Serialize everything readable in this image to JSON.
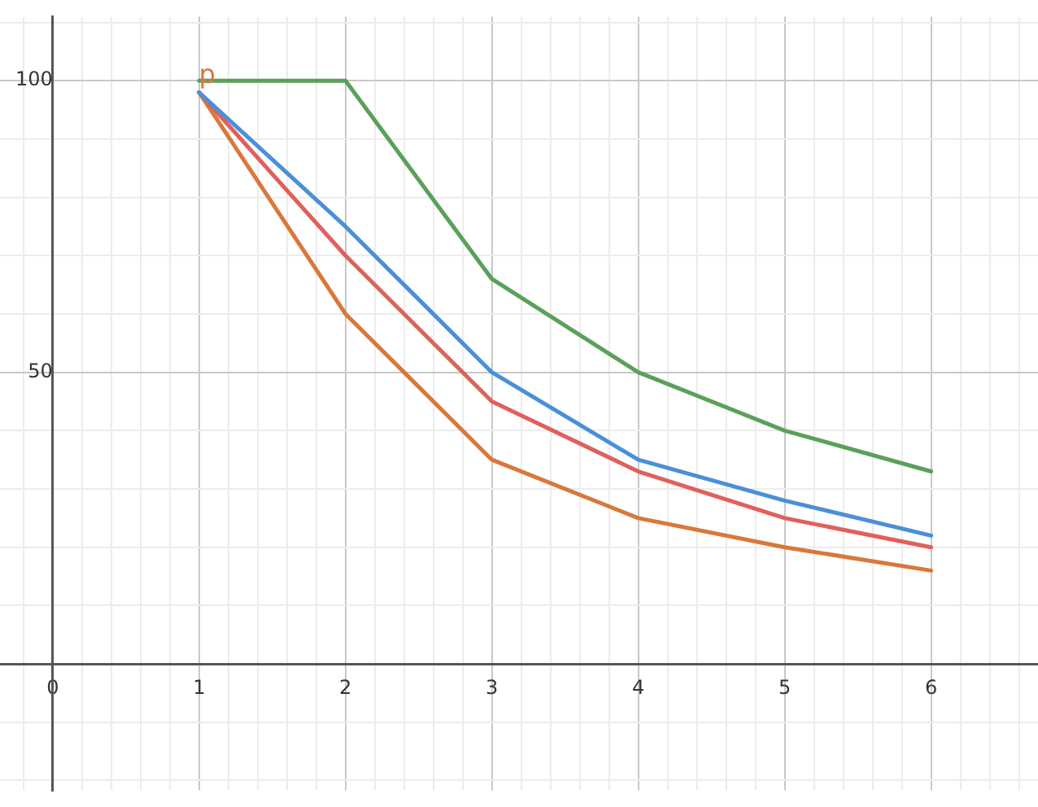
{
  "chart_data": {
    "type": "line",
    "x": [
      1,
      2,
      3,
      4,
      5,
      6
    ],
    "series": [
      {
        "color": "#5ba05a",
        "values": [
          100,
          100,
          66,
          50,
          40,
          33
        ]
      },
      {
        "color": "#4a8fd8",
        "values": [
          98,
          75,
          50,
          35,
          28,
          22
        ]
      },
      {
        "color": "#e0605c",
        "values": [
          98,
          70,
          45,
          33,
          25,
          20
        ]
      },
      {
        "color": "#d9783a",
        "values": [
          98,
          60,
          35,
          25,
          20,
          16
        ]
      }
    ],
    "xlim": [
      -0.36,
      6.73
    ],
    "ylim": [
      -21.7,
      111
    ],
    "xticks": [
      {
        "value": -0.2,
        "label": null
      },
      0,
      {
        "value": 0.2,
        "label": null
      },
      {
        "value": 0.4,
        "label": null
      },
      {
        "value": 0.6,
        "label": null
      },
      {
        "value": 0.8,
        "label": null
      },
      1,
      {
        "value": 1.2,
        "label": null
      },
      {
        "value": 1.4,
        "label": null
      },
      {
        "value": 1.6,
        "label": null
      },
      {
        "value": 1.8,
        "label": null
      },
      2,
      {
        "value": 2.2,
        "label": null
      },
      {
        "value": 2.4,
        "label": null
      },
      {
        "value": 2.6,
        "label": null
      },
      {
        "value": 2.8,
        "label": null
      },
      3,
      {
        "value": 3.2,
        "label": null
      },
      {
        "value": 3.4,
        "label": null
      },
      {
        "value": 3.6,
        "label": null
      },
      {
        "value": 3.8,
        "label": null
      },
      4,
      {
        "value": 4.2,
        "label": null
      },
      {
        "value": 4.4,
        "label": null
      },
      {
        "value": 4.6,
        "label": null
      },
      {
        "value": 4.8,
        "label": null
      },
      5,
      {
        "value": 5.2,
        "label": null
      },
      {
        "value": 5.4,
        "label": null
      },
      {
        "value": 5.6,
        "label": null
      },
      {
        "value": 5.8,
        "label": null
      },
      6,
      {
        "value": 6.2,
        "label": null
      },
      {
        "value": 6.4,
        "label": null
      },
      {
        "value": 6.6,
        "label": null
      }
    ],
    "yticks": [
      {
        "value": -20,
        "label": null
      },
      {
        "value": -10,
        "label": null
      },
      {
        "value": 0,
        "label": null
      },
      {
        "value": 10,
        "label": null
      },
      {
        "value": 20,
        "label": null
      },
      {
        "value": 30,
        "label": null
      },
      {
        "value": 40,
        "label": null
      },
      50,
      {
        "value": 60,
        "label": null
      },
      {
        "value": 70,
        "label": null
      },
      {
        "value": 80,
        "label": null
      },
      {
        "value": 90,
        "label": null
      },
      100,
      {
        "value": 110,
        "label": null
      }
    ],
    "grid": true,
    "marker": "none",
    "line_style": "solid",
    "legend": false,
    "annotations": [
      {
        "text": "p",
        "x": 1,
        "y": 100
      }
    ]
  }
}
